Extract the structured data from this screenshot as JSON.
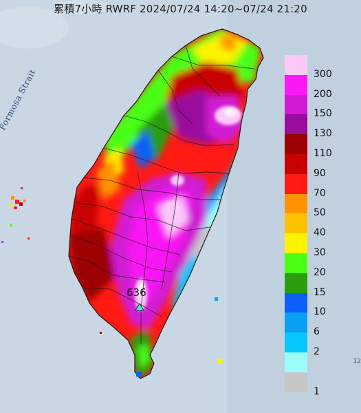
{
  "title": "累積7小時 RWRF 2024/07/24 14:20~07/24 21:20",
  "strait_label": "Formosa Strait",
  "max_value": "636",
  "edge_text": "12",
  "legend": {
    "labels": [
      "300",
      "200",
      "150",
      "130",
      "110",
      "90",
      "70",
      "50",
      "40",
      "30",
      "20",
      "15",
      "10",
      "6",
      "2",
      "1"
    ],
    "colors": [
      "#fbc8f8",
      "#fa18f4",
      "#d01ad4",
      "#9a0c9c",
      "#9c0000",
      "#c90000",
      "#ff1a14",
      "#ff9300",
      "#ffc100",
      "#fdf300",
      "#4aff12",
      "#2a9d0a",
      "#0a60f8",
      "#0aa0f4",
      "#07c6fb",
      "#9bfdf8",
      "#c6c6c6"
    ]
  },
  "colors": {
    "sea": "#c9d6e3",
    "land_east": "#b4c3d2"
  }
}
